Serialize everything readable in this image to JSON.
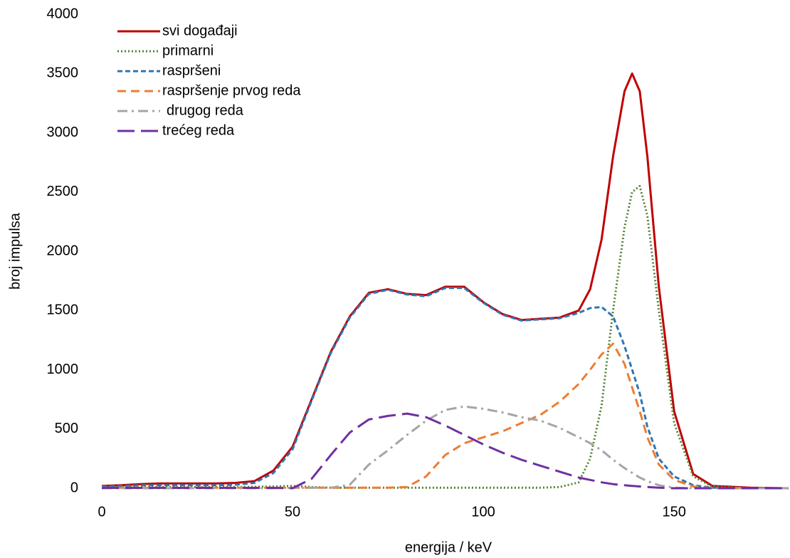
{
  "chart_data": {
    "type": "line",
    "x_label": "energija / keV",
    "y_label": "broj impulsa",
    "x": [
      0,
      5,
      10,
      15,
      20,
      25,
      30,
      35,
      40,
      45,
      50,
      55,
      60,
      65,
      70,
      75,
      80,
      85,
      90,
      95,
      100,
      105,
      110,
      115,
      120,
      125,
      128,
      131,
      134,
      137,
      139,
      141,
      143,
      146,
      150,
      155,
      160,
      170,
      180
    ],
    "series": [
      {
        "name": "svi događaji",
        "color": "#c00000",
        "dash": "solid",
        "values": [
          20,
          25,
          35,
          40,
          40,
          40,
          40,
          45,
          60,
          150,
          350,
          750,
          1150,
          1450,
          1650,
          1680,
          1640,
          1630,
          1700,
          1700,
          1570,
          1470,
          1420,
          1430,
          1440,
          1500,
          1680,
          2100,
          2800,
          3350,
          3500,
          3350,
          2800,
          1700,
          650,
          120,
          20,
          5,
          0
        ]
      },
      {
        "name": "primarni",
        "color": "#548235",
        "dash": "dotted",
        "values": [
          10,
          10,
          10,
          10,
          10,
          10,
          10,
          10,
          12,
          15,
          20,
          10,
          5,
          5,
          5,
          5,
          5,
          5,
          5,
          5,
          5,
          5,
          5,
          5,
          10,
          50,
          250,
          700,
          1500,
          2200,
          2500,
          2550,
          2300,
          1500,
          550,
          100,
          15,
          0,
          0
        ]
      },
      {
        "name": "raspršeni",
        "color": "#2e75b6",
        "dash": "short",
        "values": [
          15,
          20,
          25,
          25,
          25,
          25,
          25,
          30,
          45,
          130,
          330,
          740,
          1140,
          1440,
          1640,
          1675,
          1635,
          1620,
          1690,
          1690,
          1565,
          1465,
          1415,
          1425,
          1435,
          1480,
          1520,
          1530,
          1450,
          1200,
          1000,
          800,
          520,
          250,
          100,
          25,
          5,
          0,
          0
        ]
      },
      {
        "name": "raspršenje prvog reda",
        "color": "#ed7d31",
        "dash": "medium",
        "values": [
          5,
          5,
          5,
          5,
          5,
          5,
          5,
          5,
          5,
          5,
          5,
          5,
          5,
          5,
          5,
          5,
          10,
          100,
          280,
          380,
          430,
          480,
          550,
          620,
          730,
          880,
          1000,
          1130,
          1220,
          1050,
          850,
          650,
          430,
          200,
          70,
          15,
          0,
          0,
          0
        ]
      },
      {
        "name": "drugog reda",
        "color": "#a5a5a5",
        "dash": "dashdot",
        "values": [
          0,
          0,
          0,
          0,
          0,
          0,
          0,
          0,
          0,
          0,
          3,
          5,
          5,
          30,
          200,
          320,
          450,
          570,
          660,
          690,
          670,
          640,
          600,
          570,
          510,
          430,
          380,
          320,
          240,
          170,
          130,
          90,
          60,
          25,
          5,
          0,
          0,
          0,
          0
        ]
      },
      {
        "name": "trećeg reda",
        "color": "#7030a0",
        "dash": "long",
        "values": [
          3,
          3,
          3,
          3,
          3,
          3,
          3,
          3,
          3,
          3,
          0,
          80,
          280,
          470,
          580,
          610,
          630,
          600,
          530,
          450,
          370,
          300,
          240,
          190,
          140,
          90,
          70,
          50,
          35,
          25,
          20,
          15,
          10,
          5,
          0,
          0,
          0,
          0,
          0
        ]
      }
    ],
    "xlim": [
      0,
      180
    ],
    "xticks": [
      0,
      50,
      100,
      150
    ],
    "ylim": [
      0,
      4000
    ],
    "yticks": [
      0,
      500,
      1000,
      1500,
      2000,
      2500,
      3000,
      3500,
      4000
    ],
    "grid": false,
    "legend": "top-left"
  }
}
